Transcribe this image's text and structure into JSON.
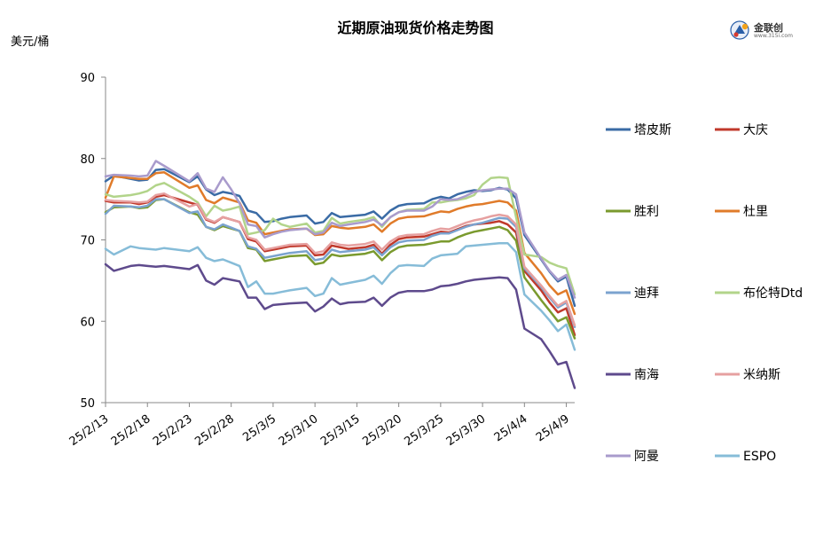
{
  "header": {
    "title": "近期原油现货价格走势图",
    "unit": "美元/桶",
    "logo_text": "金联创",
    "logo_site": "www.315i.com"
  },
  "chart_data": {
    "type": "line",
    "title": "近期原油现货价格走势图",
    "ylabel": "美元/桶",
    "ylim": [
      50,
      90
    ],
    "yticks": [
      50,
      60,
      70,
      80,
      90
    ],
    "x_tick_labels": [
      "25/2/13",
      "25/2/18",
      "25/2/23",
      "25/2/28",
      "25/3/5",
      "25/3/10",
      "25/3/15",
      "25/3/20",
      "25/3/25",
      "25/3/30",
      "25/4/4",
      "25/4/9"
    ],
    "x_tick_days": [
      0,
      5,
      10,
      15,
      20,
      25,
      30,
      35,
      40,
      45,
      50,
      55
    ],
    "x_days": [
      0,
      1,
      3,
      4,
      5,
      6,
      7,
      10,
      11,
      12,
      13,
      14,
      15,
      16,
      17,
      18,
      19,
      20,
      21,
      22,
      24,
      25,
      26,
      27,
      28,
      29,
      31,
      32,
      33,
      34,
      35,
      36,
      38,
      39,
      40,
      41,
      42,
      43,
      44,
      45,
      46,
      47,
      48,
      49,
      50,
      52,
      53,
      54,
      55,
      56
    ],
    "series": [
      {
        "name": "塔皮斯",
        "color": "#3a6ba5",
        "values": [
          77.2,
          77.9,
          77.5,
          77.3,
          77.4,
          78.6,
          78.7,
          77.1,
          77.8,
          76.2,
          75.5,
          75.9,
          75.7,
          75.4,
          73.6,
          73.3,
          72.2,
          72.3,
          72.6,
          72.8,
          73.0,
          72.0,
          72.2,
          73.3,
          72.8,
          72.9,
          73.1,
          73.5,
          72.6,
          73.6,
          74.2,
          74.4,
          74.5,
          75.0,
          75.3,
          75.1,
          75.6,
          75.9,
          76.1,
          76.0,
          76.1,
          76.4,
          76.2,
          75.1,
          70.6,
          67.6,
          66.1,
          64.9,
          65.5,
          61.9
        ]
      },
      {
        "name": "大庆",
        "color": "#c0392b",
        "values": [
          74.8,
          74.6,
          74.6,
          74.4,
          74.6,
          75.3,
          75.5,
          74.6,
          74.3,
          72.5,
          72.1,
          72.8,
          72.5,
          72.2,
          70.1,
          69.8,
          68.6,
          68.8,
          69.0,
          69.2,
          69.3,
          68.1,
          68.2,
          69.3,
          69.1,
          68.9,
          69.1,
          69.4,
          68.3,
          69.4,
          70.1,
          70.3,
          70.4,
          70.7,
          71.0,
          70.9,
          71.3,
          71.7,
          71.9,
          72.0,
          72.1,
          72.3,
          71.9,
          70.9,
          66.2,
          63.8,
          62.3,
          61.1,
          61.6,
          58.3
        ]
      },
      {
        "name": "胜利",
        "color": "#7a9a2e",
        "values": [
          73.4,
          74.0,
          74.1,
          73.9,
          74.0,
          74.9,
          75.0,
          73.4,
          73.1,
          71.6,
          71.2,
          71.7,
          71.4,
          71.1,
          69.0,
          68.8,
          67.4,
          67.6,
          67.8,
          68.0,
          68.1,
          67.0,
          67.2,
          68.2,
          68.0,
          68.1,
          68.3,
          68.6,
          67.5,
          68.5,
          69.1,
          69.3,
          69.4,
          69.6,
          69.8,
          69.8,
          70.3,
          70.7,
          71.0,
          71.2,
          71.4,
          71.6,
          71.2,
          69.9,
          65.4,
          62.6,
          61.3,
          60.0,
          60.5,
          57.9
        ]
      },
      {
        "name": "杜里",
        "color": "#e07b2a",
        "values": [
          75.2,
          77.8,
          77.6,
          77.5,
          77.5,
          78.2,
          78.3,
          76.4,
          76.7,
          74.9,
          74.5,
          75.2,
          74.9,
          74.6,
          72.4,
          72.1,
          70.7,
          70.9,
          71.1,
          71.3,
          71.4,
          70.6,
          70.7,
          71.7,
          71.5,
          71.4,
          71.6,
          71.9,
          71.0,
          72.0,
          72.6,
          72.8,
          72.9,
          73.2,
          73.5,
          73.4,
          73.8,
          74.1,
          74.3,
          74.4,
          74.6,
          74.8,
          74.6,
          73.6,
          68.4,
          65.9,
          64.4,
          63.3,
          63.8,
          60.9
        ]
      },
      {
        "name": "迪拜",
        "color": "#7ba3cf",
        "values": [
          73.2,
          74.2,
          74.1,
          74.0,
          74.2,
          75.0,
          75.0,
          73.3,
          73.5,
          71.6,
          71.3,
          71.9,
          71.5,
          71.1,
          69.2,
          68.9,
          67.8,
          68.0,
          68.2,
          68.4,
          68.6,
          67.5,
          67.7,
          68.8,
          68.5,
          68.6,
          68.8,
          69.1,
          68.1,
          69.1,
          69.7,
          69.9,
          70.0,
          70.5,
          70.8,
          70.8,
          71.2,
          71.6,
          71.9,
          72.1,
          72.4,
          72.7,
          72.6,
          71.6,
          66.5,
          64.2,
          62.9,
          61.7,
          62.3,
          59.3
        ]
      },
      {
        "name": "布伦特Dtd",
        "color": "#b2d48a",
        "values": [
          75.6,
          75.3,
          75.5,
          75.7,
          76.0,
          76.7,
          77.0,
          75.3,
          74.6,
          72.9,
          74.2,
          73.6,
          73.8,
          74.1,
          70.7,
          70.9,
          71.2,
          72.6,
          71.9,
          71.6,
          72.0,
          70.9,
          71.1,
          72.7,
          72.0,
          72.2,
          72.5,
          72.8,
          71.6,
          72.8,
          73.4,
          73.7,
          73.8,
          74.6,
          74.6,
          74.8,
          74.9,
          75.1,
          75.5,
          76.8,
          77.6,
          77.7,
          77.6,
          72.8,
          68.2,
          67.9,
          67.2,
          66.8,
          66.5,
          63.3
        ]
      },
      {
        "name": "南海",
        "color": "#5e4a8c",
        "values": [
          67.0,
          66.2,
          66.8,
          66.9,
          66.8,
          66.7,
          66.8,
          66.4,
          66.9,
          65.0,
          64.5,
          65.3,
          65.1,
          64.9,
          62.9,
          62.9,
          61.5,
          62.0,
          62.1,
          62.2,
          62.3,
          61.2,
          61.8,
          62.8,
          62.1,
          62.3,
          62.4,
          62.9,
          61.9,
          62.9,
          63.5,
          63.7,
          63.7,
          63.9,
          64.3,
          64.4,
          64.6,
          64.9,
          65.1,
          65.2,
          65.3,
          65.4,
          65.3,
          63.9,
          59.1,
          57.8,
          56.3,
          54.7,
          55.0,
          51.8
        ]
      },
      {
        "name": "米纳斯",
        "color": "#e6a0a0",
        "values": [
          74.9,
          74.8,
          74.7,
          74.6,
          74.7,
          75.5,
          75.7,
          74.1,
          74.4,
          72.6,
          72.2,
          72.8,
          72.5,
          72.2,
          70.3,
          70.0,
          68.8,
          69.0,
          69.2,
          69.4,
          69.5,
          68.4,
          68.6,
          69.7,
          69.4,
          69.3,
          69.5,
          69.8,
          68.8,
          69.8,
          70.4,
          70.6,
          70.7,
          71.1,
          71.4,
          71.3,
          71.7,
          72.1,
          72.4,
          72.6,
          72.9,
          73.1,
          72.9,
          71.9,
          66.7,
          64.4,
          63.1,
          61.9,
          62.5,
          59.5
        ]
      },
      {
        "name": "阿曼",
        "color": "#a99bcc",
        "values": [
          77.8,
          78.0,
          77.9,
          77.8,
          77.9,
          79.7,
          79.1,
          77.2,
          78.2,
          76.3,
          75.9,
          77.7,
          76.2,
          74.5,
          71.9,
          71.7,
          70.3,
          70.7,
          71.0,
          71.2,
          71.4,
          70.7,
          70.9,
          72.1,
          71.7,
          71.9,
          72.2,
          72.5,
          71.8,
          72.8,
          73.4,
          73.6,
          73.6,
          74.1,
          75.0,
          74.9,
          75.0,
          75.4,
          75.9,
          76.1,
          76.2,
          76.3,
          76.3,
          75.6,
          70.9,
          67.7,
          66.2,
          65.1,
          65.7,
          62.9
        ]
      },
      {
        "name": "ESPO",
        "color": "#86bcd8",
        "values": [
          68.9,
          68.2,
          69.2,
          69.0,
          68.9,
          68.8,
          69.0,
          68.6,
          69.1,
          67.8,
          67.4,
          67.6,
          67.2,
          66.8,
          64.2,
          64.9,
          63.4,
          63.4,
          63.6,
          63.8,
          64.1,
          63.1,
          63.4,
          65.3,
          64.5,
          64.7,
          65.1,
          65.6,
          64.6,
          65.9,
          66.8,
          66.9,
          66.8,
          67.7,
          68.1,
          68.2,
          68.3,
          69.2,
          69.3,
          69.4,
          69.5,
          69.6,
          69.6,
          68.5,
          63.3,
          61.3,
          60.1,
          58.8,
          59.6,
          56.5
        ]
      }
    ]
  }
}
